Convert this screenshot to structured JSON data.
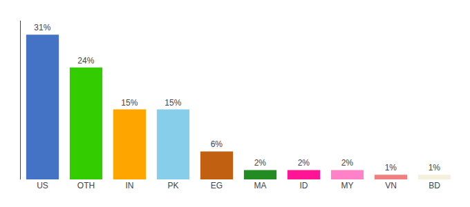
{
  "chart_data": {
    "type": "bar",
    "categories": [
      "US",
      "OTH",
      "IN",
      "PK",
      "EG",
      "MA",
      "ID",
      "MY",
      "VN",
      "BD"
    ],
    "values": [
      31,
      24,
      15,
      15,
      6,
      2,
      2,
      2,
      1,
      1
    ],
    "value_labels": [
      "31%",
      "24%",
      "15%",
      "15%",
      "6%",
      "2%",
      "2%",
      "2%",
      "1%",
      "1%"
    ],
    "colors": [
      "#4472C4",
      "#33CC00",
      "#FFA500",
      "#87CEEB",
      "#C06010",
      "#228B22",
      "#FF1493",
      "#FF82C8",
      "#F08080",
      "#F5F0DC"
    ],
    "ylim": [
      0,
      34
    ],
    "data_labels": true,
    "tick_labels": "x",
    "grid": false
  }
}
